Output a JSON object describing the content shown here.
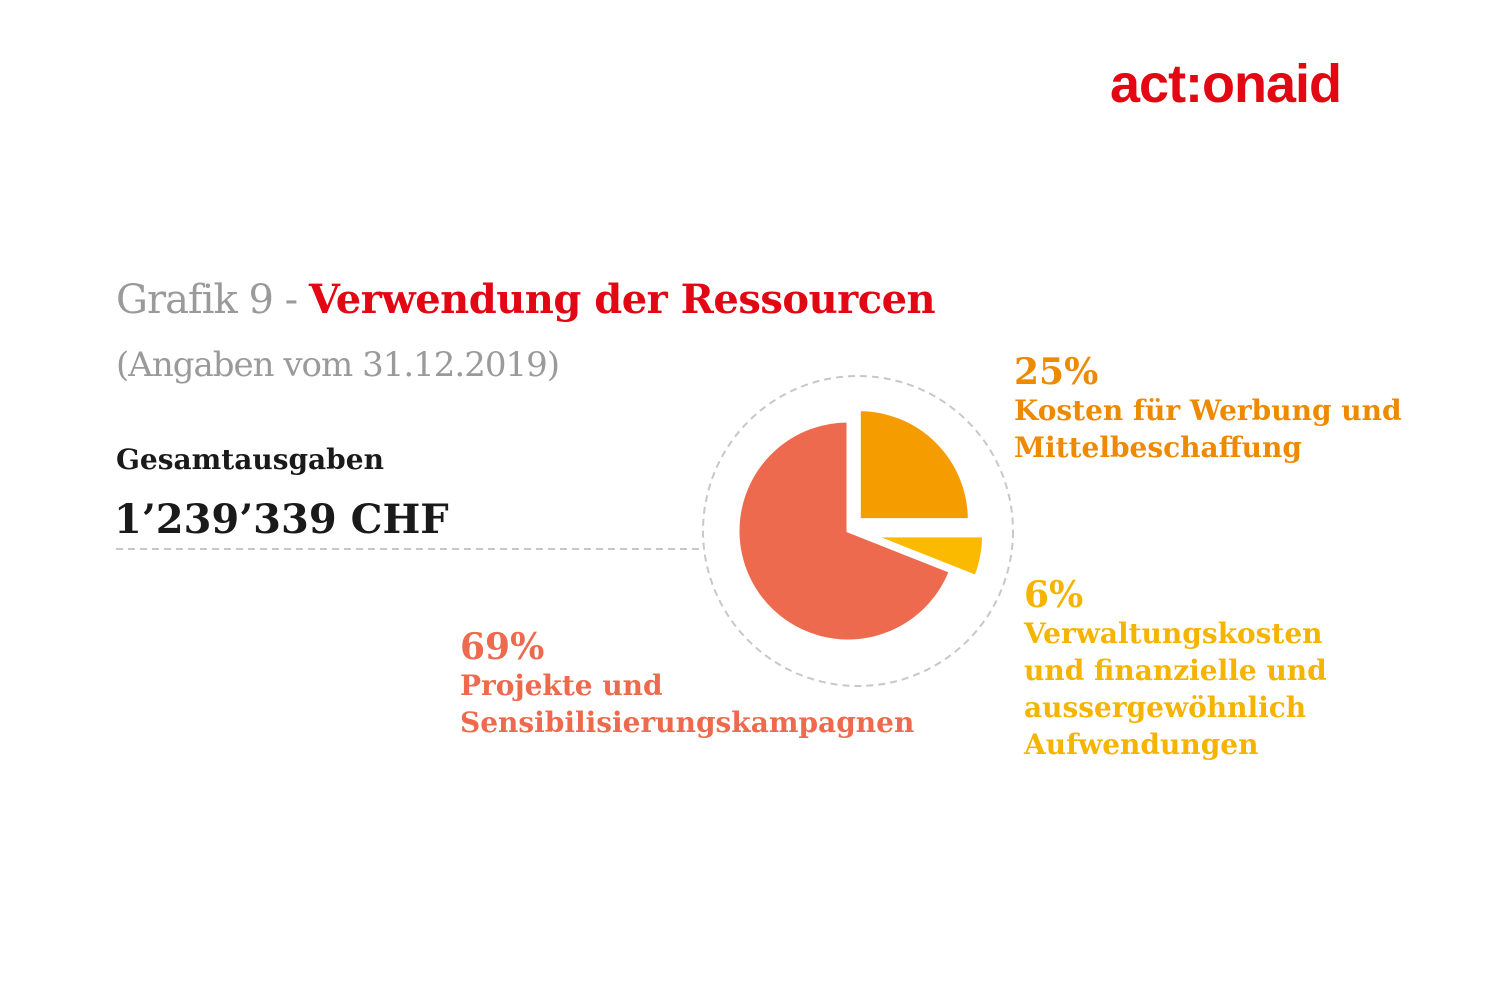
{
  "brand": {
    "logo_text": "act:onaid",
    "color": "#e30613"
  },
  "heading": {
    "prefix": "Grafik 9 - ",
    "title": "Verwendung der Ressourcen",
    "subtitle": "(Angaben vom 31.12.2019)"
  },
  "total": {
    "label": "Gesamtausgaben",
    "value": "1’239’339 CHF"
  },
  "chart_data": {
    "type": "pie",
    "title": "Verwendung der Ressourcen",
    "slices": [
      {
        "label": "Kosten für Werbung und\nMittelbeschaffung",
        "value": 25,
        "pct_label": "25%",
        "color": "#f59c00"
      },
      {
        "label": "Verwaltungskosten\nund finanzielle und\naussergewöhnlich\nAufwendungen",
        "value": 6,
        "pct_label": "6%",
        "color": "#fbba00"
      },
      {
        "label": "Projekte und\nSensibilisierungskampagnen",
        "value": 69,
        "pct_label": "69%",
        "color": "#ee6a4e"
      }
    ],
    "legend": "none",
    "labels_placement": "beside-slices"
  }
}
